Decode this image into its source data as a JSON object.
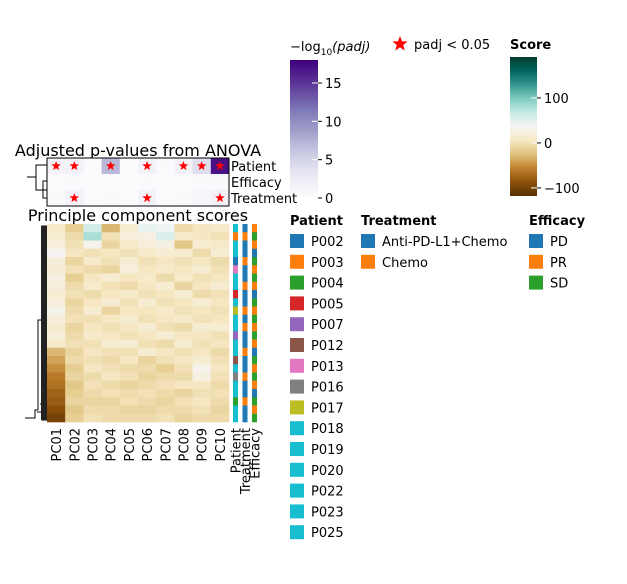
{
  "chart_data": [
    {
      "type": "heatmap",
      "title": "Adjusted p-values from ANOVA",
      "rows": [
        "Patient",
        "Efficacy",
        "Treatment"
      ],
      "columns": [
        "PC01",
        "PC02",
        "PC03",
        "PC04",
        "PC05",
        "PC06",
        "PC07",
        "PC08",
        "PC09",
        "PC10"
      ],
      "values": [
        [
          1.6,
          1.5,
          0.1,
          7,
          0.2,
          1.5,
          0.3,
          1.6,
          4,
          17
        ],
        [
          0.2,
          0.3,
          0.1,
          0.2,
          0.1,
          0.3,
          0.1,
          0.2,
          0.4,
          0.3
        ],
        [
          0.3,
          1.5,
          0.2,
          0.3,
          0.1,
          1.4,
          0.2,
          0.3,
          0.8,
          1.6
        ]
      ],
      "significant": [
        [
          true,
          true,
          false,
          true,
          false,
          true,
          false,
          true,
          true,
          true
        ],
        [
          false,
          false,
          false,
          false,
          false,
          false,
          false,
          false,
          false,
          false
        ],
        [
          false,
          true,
          false,
          false,
          false,
          true,
          false,
          false,
          false,
          true
        ]
      ],
      "star_legend": "padj < 0.05",
      "star_color": "#ff0000",
      "colorbar": {
        "title_parts": [
          "−log",
          "10",
          "(padj)"
        ],
        "lim": [
          0,
          18
        ],
        "ticks": [
          0,
          5,
          10,
          15
        ],
        "cmap": [
          "#fcfbfd",
          "#efedf5",
          "#dadaeb",
          "#bcbddc",
          "#9e9ac8",
          "#807dba",
          "#6a51a3",
          "#54278f",
          "#3f007d"
        ]
      }
    },
    {
      "type": "heatmap",
      "title": "Principle component scores",
      "columns": [
        "PC01",
        "PC02",
        "PC03",
        "PC04",
        "PC05",
        "PC06",
        "PC07",
        "PC08",
        "PC09",
        "PC10"
      ],
      "values": [
        [
          10,
          -15,
          60,
          -30,
          15,
          45,
          40,
          -5,
          5,
          10
        ],
        [
          15,
          -5,
          80,
          0,
          20,
          25,
          55,
          10,
          5,
          0
        ],
        [
          20,
          0,
          30,
          -10,
          10,
          20,
          25,
          -20,
          15,
          10
        ],
        [
          35,
          5,
          0,
          5,
          0,
          10,
          15,
          15,
          -5,
          15
        ],
        [
          20,
          -10,
          10,
          0,
          15,
          0,
          5,
          0,
          5,
          -5
        ],
        [
          15,
          0,
          -5,
          -10,
          20,
          5,
          10,
          5,
          15,
          0
        ],
        [
          25,
          -15,
          5,
          15,
          5,
          10,
          -5,
          10,
          0,
          5
        ],
        [
          20,
          -5,
          10,
          0,
          -5,
          5,
          15,
          -10,
          5,
          15
        ],
        [
          15,
          0,
          -5,
          5,
          10,
          0,
          5,
          15,
          -5,
          0
        ],
        [
          20,
          -10,
          5,
          15,
          0,
          15,
          0,
          5,
          15,
          5
        ],
        [
          30,
          -5,
          15,
          -10,
          5,
          5,
          10,
          0,
          5,
          0
        ],
        [
          20,
          0,
          0,
          5,
          15,
          0,
          5,
          10,
          0,
          5
        ],
        [
          15,
          -10,
          5,
          0,
          5,
          15,
          0,
          -5,
          15,
          15
        ],
        [
          20,
          -5,
          10,
          5,
          0,
          5,
          15,
          5,
          5,
          0
        ],
        [
          10,
          0,
          0,
          15,
          15,
          0,
          -5,
          15,
          0,
          5
        ],
        [
          -30,
          -10,
          5,
          0,
          0,
          15,
          5,
          0,
          5,
          -5
        ],
        [
          -40,
          -5,
          0,
          -5,
          5,
          -10,
          0,
          5,
          15,
          0
        ],
        [
          -50,
          -15,
          5,
          0,
          -5,
          -5,
          -15,
          0,
          30,
          5
        ],
        [
          -60,
          -10,
          -5,
          5,
          0,
          -10,
          -5,
          -5,
          25,
          0
        ],
        [
          -65,
          -20,
          0,
          -5,
          -10,
          -5,
          0,
          5,
          5,
          -5
        ],
        [
          -75,
          -15,
          -5,
          0,
          -5,
          0,
          -5,
          -10,
          0,
          0
        ],
        [
          -80,
          -10,
          -10,
          -10,
          0,
          -5,
          -10,
          0,
          5,
          -5
        ],
        [
          -90,
          -20,
          -5,
          -5,
          -10,
          -10,
          -5,
          -5,
          0,
          -10
        ],
        [
          -100,
          -15,
          0,
          -5,
          -5,
          -5,
          0,
          -10,
          -5,
          -5
        ]
      ],
      "annotation_names": [
        "Patient",
        "Treatment",
        "Efficacy"
      ],
      "annotations": [
        [
          "P018",
          "P003",
          "P022",
          "P019",
          "P002",
          "P013",
          "P020",
          "P018",
          "P005",
          "P023",
          "P017",
          "P025",
          "P019",
          "P007",
          "P020",
          "P018",
          "P012",
          "P022",
          "P016",
          "P023",
          "P019",
          "P004",
          "P025",
          "P018"
        ],
        [
          "Anti-PD-L1+Chemo",
          "Chemo",
          "Anti-PD-L1+Chemo",
          "Anti-PD-L1+Chemo",
          "Chemo",
          "Anti-PD-L1+Chemo",
          "Anti-PD-L1+Chemo",
          "Chemo",
          "Anti-PD-L1+Chemo",
          "Anti-PD-L1+Chemo",
          "Chemo",
          "Anti-PD-L1+Chemo",
          "Chemo",
          "Anti-PD-L1+Chemo",
          "Anti-PD-L1+Chemo",
          "Chemo",
          "Anti-PD-L1+Chemo",
          "Anti-PD-L1+Chemo",
          "Chemo",
          "Anti-PD-L1+Chemo",
          "Anti-PD-L1+Chemo",
          "Chemo",
          "Anti-PD-L1+Chemo",
          "Anti-PD-L1+Chemo"
        ],
        [
          "PR",
          "SD",
          "PR",
          "PD",
          "SD",
          "PR",
          "SD",
          "PR",
          "PD",
          "SD",
          "PR",
          "SD",
          "PR",
          "SD",
          "PR",
          "PD",
          "SD",
          "PR",
          "SD",
          "PR",
          "PD",
          "SD",
          "PR",
          "SD"
        ]
      ],
      "colorbar": {
        "title": "Score",
        "lim": [
          -118,
          191
        ],
        "ticks": [
          {
            "value": -100,
            "label": "−100"
          },
          0,
          100
        ],
        "cmap": [
          "#543005",
          "#8c510a",
          "#bf812d",
          "#dfc27d",
          "#f6e8c3",
          "#f5f5f5",
          "#c7eae5",
          "#80cdc1",
          "#35978f",
          "#01665e",
          "#003c30"
        ]
      },
      "legends": [
        {
          "title": "Patient",
          "entries": [
            {
              "name": "P002",
              "color": "#1f77b4"
            },
            {
              "name": "P003",
              "color": "#ff7f0e"
            },
            {
              "name": "P004",
              "color": "#2ca02c"
            },
            {
              "name": "P005",
              "color": "#d62728"
            },
            {
              "name": "P007",
              "color": "#9467bd"
            },
            {
              "name": "P012",
              "color": "#8c564b"
            },
            {
              "name": "P013",
              "color": "#e377c2"
            },
            {
              "name": "P016",
              "color": "#7f7f7f"
            },
            {
              "name": "P017",
              "color": "#bcbd22"
            },
            {
              "name": "P018",
              "color": "#17becf"
            },
            {
              "name": "P019",
              "color": "#17becf"
            },
            {
              "name": "P020",
              "color": "#17becf"
            },
            {
              "name": "P022",
              "color": "#17becf"
            },
            {
              "name": "P023",
              "color": "#17becf"
            },
            {
              "name": "P025",
              "color": "#17becf"
            }
          ]
        },
        {
          "title": "Treatment",
          "entries": [
            {
              "name": "Anti-PD-L1+Chemo",
              "color": "#1f77b4"
            },
            {
              "name": "Chemo",
              "color": "#ff7f0e"
            }
          ]
        },
        {
          "title": "Efficacy",
          "entries": [
            {
              "name": "PD",
              "color": "#1f77b4"
            },
            {
              "name": "PR",
              "color": "#ff7f0e"
            },
            {
              "name": "SD",
              "color": "#2ca02c"
            }
          ]
        }
      ]
    }
  ]
}
